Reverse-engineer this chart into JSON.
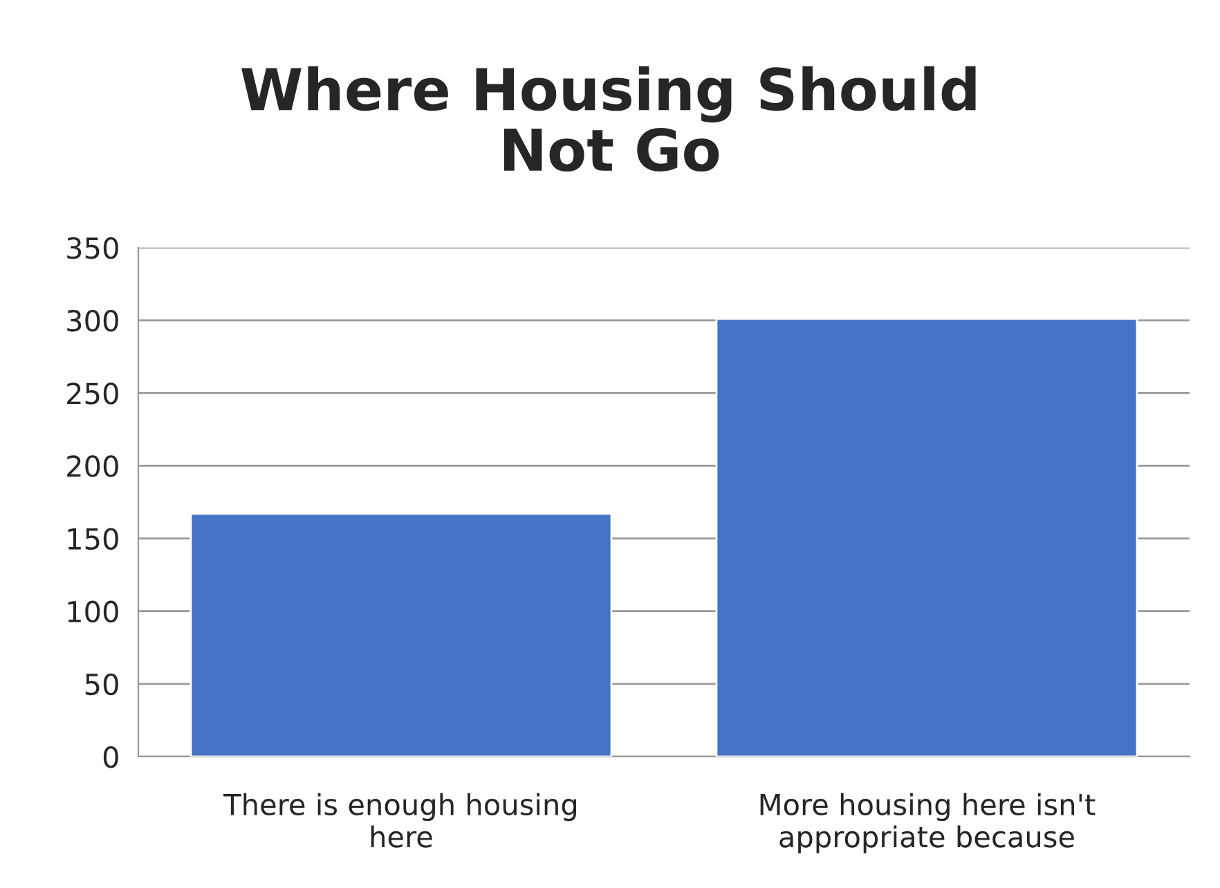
{
  "chart_data": {
    "type": "bar",
    "title": "Where Housing Should\nNot Go",
    "categories": [
      "There is enough housing\nhere",
      "More housing here isn't\nappropriate because"
    ],
    "values": [
      167,
      301
    ],
    "color": "#4472c4",
    "ylim": [
      0,
      350
    ],
    "yticks": [
      0,
      50,
      100,
      150,
      200,
      250,
      300,
      350
    ],
    "grid": "y"
  }
}
